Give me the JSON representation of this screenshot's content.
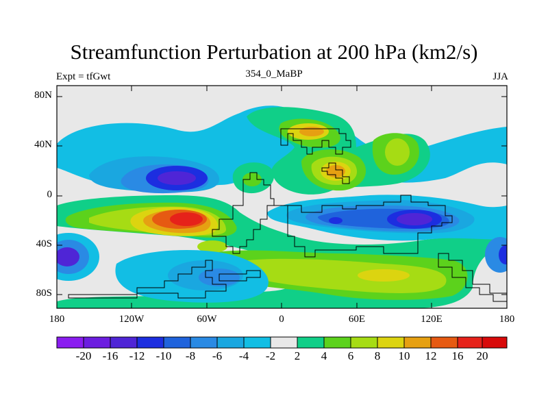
{
  "title": "Streamfunction Perturbation at 200 hPa (km2/s)",
  "subtitle_left": "Expt = tfGwt",
  "subtitle_center": "354_0_MaBP",
  "subtitle_right": "JJA",
  "lat_labels": [
    "80N",
    "40N",
    "0",
    "40S",
    "80S"
  ],
  "lon_labels": [
    "180",
    "120W",
    "60W",
    "0",
    "60E",
    "120E",
    "180"
  ],
  "colorbar": {
    "labels": [
      "-20",
      "-16",
      "-12",
      "-10",
      "-8",
      "-6",
      "-4",
      "-2",
      "2",
      "4",
      "6",
      "8",
      "10",
      "12",
      "16",
      "20"
    ],
    "colors": [
      "#8a1df0",
      "#6c1de0",
      "#4f25d6",
      "#1c2ee0",
      "#1f63dc",
      "#2a8ae4",
      "#1aa7e0",
      "#12bee4",
      "#e8e8e8",
      "#10cf88",
      "#5cd21c",
      "#a6dc14",
      "#dcd410",
      "#e6a012",
      "#e65a12",
      "#e6221a",
      "#d80a0a"
    ]
  },
  "color_scale": {
    "neg_strong": "#6c1de0",
    "neg_mid": "#1f63dc",
    "neg_weak": "#12bee4",
    "neutral": "#e8e8e8",
    "pos_weak": "#10cf88",
    "pos_mid": "#a6dc14",
    "pos_strong": "#e6221a"
  }
}
